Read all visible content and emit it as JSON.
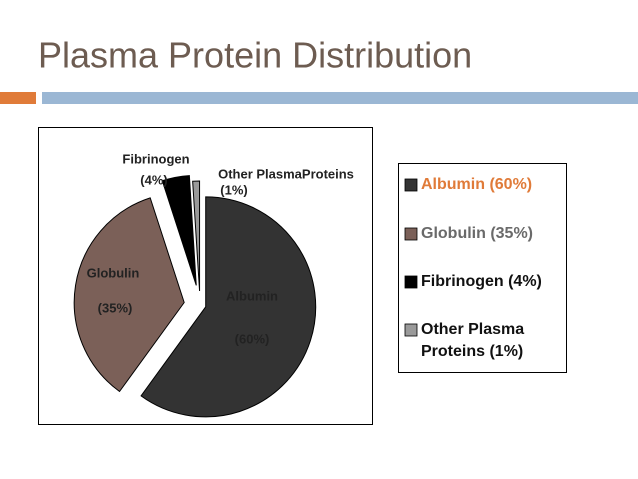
{
  "chart_data": {
    "type": "pie",
    "title": "Plasma Protein Distribution",
    "categories": [
      "Albumin",
      "Globulin",
      "Fibrinogen",
      "Other PlasmaProteins"
    ],
    "values": [
      60,
      35,
      4,
      1
    ],
    "value_labels": [
      "(60%)",
      "(35%)",
      "(4%)",
      "(1%)"
    ],
    "colors": [
      "#333333",
      "#7b6058",
      "#000000",
      "#9a9a9a"
    ],
    "legend_labels": [
      "Albumin (60%)",
      "Globulin (35%)",
      "Fibrinogen (4%)",
      "Other Plasma Proteins (1%)"
    ],
    "legend": "right"
  }
}
